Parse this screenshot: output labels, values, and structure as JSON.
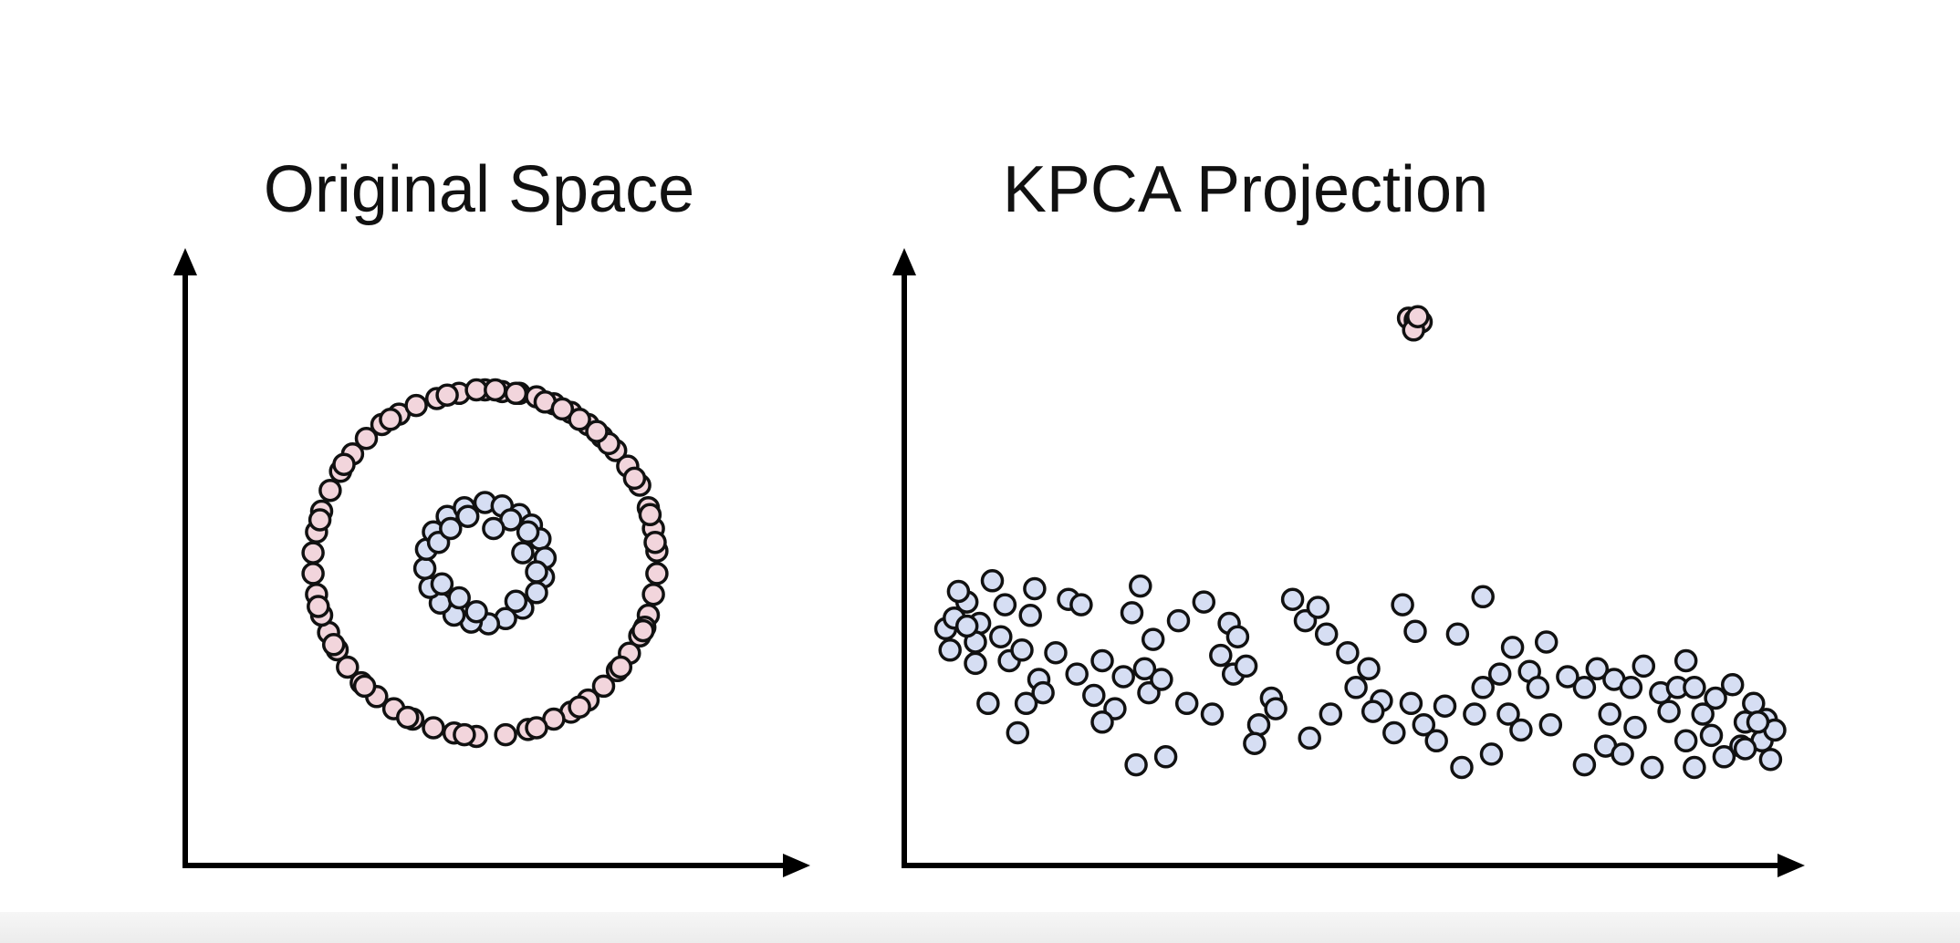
{
  "colors": {
    "outer_ring": "#f2d5dc",
    "inner_ring": "#d6def3",
    "axis": "#000000",
    "marker_edge": "#111111"
  },
  "chart_data": [
    {
      "type": "scatter",
      "title": "Original Space",
      "xlabel": "",
      "ylabel": "",
      "axes_ticks": false,
      "grid": false,
      "xlim": [
        -1.25,
        1.25
      ],
      "ylim": [
        -1.25,
        1.25
      ],
      "series": [
        {
          "color": "#f2d5dc",
          "points": [
            [
              0.0,
              1.0
            ],
            [
              0.1,
              0.99
            ],
            [
              0.2,
              0.98
            ],
            [
              0.3,
              0.96
            ],
            [
              0.4,
              0.92
            ],
            [
              0.5,
              0.87
            ],
            [
              0.6,
              0.8
            ],
            [
              0.68,
              0.73
            ],
            [
              0.76,
              0.65
            ],
            [
              0.83,
              0.56
            ],
            [
              0.9,
              0.45
            ],
            [
              0.95,
              0.32
            ],
            [
              0.98,
              0.2
            ],
            [
              1.0,
              0.07
            ],
            [
              1.0,
              -0.06
            ],
            [
              0.98,
              -0.18
            ],
            [
              0.95,
              -0.3
            ],
            [
              0.9,
              -0.42
            ],
            [
              0.84,
              -0.52
            ],
            [
              0.77,
              -0.62
            ],
            [
              0.69,
              -0.71
            ],
            [
              0.6,
              -0.79
            ],
            [
              0.5,
              -0.86
            ],
            [
              0.4,
              -0.9
            ],
            [
              0.25,
              -0.96
            ],
            [
              0.12,
              -0.99
            ],
            [
              -0.05,
              -1.0
            ],
            [
              -0.18,
              -0.98
            ],
            [
              -0.3,
              -0.95
            ],
            [
              -0.42,
              -0.9
            ],
            [
              -0.53,
              -0.84
            ],
            [
              -0.63,
              -0.77
            ],
            [
              -0.72,
              -0.69
            ],
            [
              -0.8,
              -0.6
            ],
            [
              -0.86,
              -0.5
            ],
            [
              -0.91,
              -0.4
            ],
            [
              -0.95,
              -0.3
            ],
            [
              -0.98,
              -0.18
            ],
            [
              -1.0,
              -0.06
            ],
            [
              -1.0,
              0.06
            ],
            [
              -0.98,
              0.18
            ],
            [
              -0.95,
              0.3
            ],
            [
              -0.9,
              0.42
            ],
            [
              -0.84,
              0.53
            ],
            [
              -0.77,
              0.63
            ],
            [
              -0.69,
              0.72
            ],
            [
              -0.6,
              0.8
            ],
            [
              -0.5,
              0.86
            ],
            [
              -0.4,
              0.91
            ],
            [
              -0.28,
              0.95
            ],
            [
              -0.15,
              0.98
            ],
            [
              -0.05,
              1.0
            ],
            [
              0.06,
              1.0
            ],
            [
              0.18,
              0.98
            ],
            [
              0.35,
              0.93
            ],
            [
              0.55,
              0.83
            ],
            [
              0.72,
              0.69
            ],
            [
              0.87,
              0.49
            ],
            [
              0.96,
              0.28
            ],
            [
              0.99,
              0.12
            ],
            [
              0.93,
              -0.37
            ],
            [
              0.79,
              -0.6
            ],
            [
              0.55,
              -0.83
            ],
            [
              0.3,
              -0.95
            ],
            [
              -0.12,
              -0.99
            ],
            [
              -0.45,
              -0.89
            ],
            [
              -0.7,
              -0.71
            ],
            [
              -0.88,
              -0.47
            ],
            [
              -0.97,
              -0.25
            ],
            [
              -0.96,
              0.25
            ],
            [
              -0.82,
              0.57
            ],
            [
              -0.55,
              0.83
            ],
            [
              -0.22,
              0.97
            ],
            [
              0.45,
              0.89
            ],
            [
              0.65,
              0.76
            ],
            [
              0.92,
              -0.39
            ]
          ]
        },
        {
          "color": "#d6def3",
          "points": [
            [
              0.0,
              0.35
            ],
            [
              0.1,
              0.33
            ],
            [
              0.2,
              0.28
            ],
            [
              0.27,
              0.22
            ],
            [
              0.32,
              0.14
            ],
            [
              0.35,
              0.03
            ],
            [
              0.34,
              -0.08
            ],
            [
              0.3,
              -0.17
            ],
            [
              0.22,
              -0.26
            ],
            [
              0.12,
              -0.32
            ],
            [
              0.02,
              -0.35
            ],
            [
              -0.08,
              -0.34
            ],
            [
              -0.18,
              -0.3
            ],
            [
              -0.26,
              -0.23
            ],
            [
              -0.32,
              -0.14
            ],
            [
              -0.35,
              -0.03
            ],
            [
              -0.34,
              0.08
            ],
            [
              -0.3,
              0.18
            ],
            [
              -0.22,
              0.27
            ],
            [
              -0.12,
              0.32
            ],
            [
              0.25,
              0.18
            ],
            [
              0.3,
              -0.05
            ],
            [
              0.18,
              -0.22
            ],
            [
              -0.05,
              -0.28
            ],
            [
              -0.25,
              -0.12
            ],
            [
              -0.27,
              0.12
            ],
            [
              -0.1,
              0.27
            ],
            [
              0.15,
              0.25
            ],
            [
              0.05,
              0.2
            ],
            [
              -0.2,
              0.2
            ],
            [
              0.22,
              0.06
            ],
            [
              -0.15,
              -0.2
            ]
          ]
        }
      ]
    },
    {
      "type": "scatter",
      "title": "KPCA Projection",
      "xlabel": "",
      "ylabel": "",
      "axes_ticks": false,
      "grid": false,
      "xlim": [
        0,
        10
      ],
      "ylim": [
        0,
        10
      ],
      "series": [
        {
          "color": "#f2d5dc",
          "points": [
            [
              5.67,
              9.42
            ],
            [
              5.75,
              9.39
            ],
            [
              5.82,
              9.35
            ],
            [
              5.73,
              9.2
            ],
            [
              5.78,
              9.45
            ]
          ]
        },
        {
          "color": "#d6def3",
          "points": [
            [
              0.2,
              3.6
            ],
            [
              0.3,
              3.8
            ],
            [
              0.45,
              4.1
            ],
            [
              0.35,
              4.3
            ],
            [
              0.6,
              3.7
            ],
            [
              0.75,
              4.5
            ],
            [
              0.9,
              4.05
            ],
            [
              0.85,
              3.45
            ],
            [
              0.95,
              3.0
            ],
            [
              0.7,
              2.2
            ],
            [
              1.2,
              3.85
            ],
            [
              1.1,
              3.2
            ],
            [
              1.3,
              2.65
            ],
            [
              1.15,
              2.2
            ],
            [
              0.55,
              2.95
            ],
            [
              0.25,
              3.2
            ],
            [
              1.5,
              3.15
            ],
            [
              1.35,
              2.4
            ],
            [
              1.65,
              4.15
            ],
            [
              1.8,
              4.05
            ],
            [
              2.05,
              3.0
            ],
            [
              2.2,
              2.1
            ],
            [
              2.3,
              2.7
            ],
            [
              1.95,
              2.35
            ],
            [
              2.4,
              3.9
            ],
            [
              2.5,
              4.4
            ],
            [
              2.55,
              2.85
            ],
            [
              2.6,
              2.4
            ],
            [
              2.65,
              3.4
            ],
            [
              2.8,
              1.2
            ],
            [
              2.95,
              3.75
            ],
            [
              3.25,
              4.1
            ],
            [
              3.35,
              2.0
            ],
            [
              3.45,
              3.1
            ],
            [
              3.55,
              3.7
            ],
            [
              3.6,
              2.75
            ],
            [
              3.75,
              2.9
            ],
            [
              3.9,
              1.8
            ],
            [
              3.65,
              3.45
            ],
            [
              4.05,
              2.3
            ],
            [
              4.3,
              4.15
            ],
            [
              4.45,
              3.75
            ],
            [
              4.6,
              4.0
            ],
            [
              4.7,
              3.5
            ],
            [
              4.75,
              2.0
            ],
            [
              4.95,
              3.15
            ],
            [
              5.05,
              2.5
            ],
            [
              5.2,
              2.85
            ],
            [
              5.35,
              2.25
            ],
            [
              5.5,
              1.65
            ],
            [
              5.6,
              4.05
            ],
            [
              5.75,
              3.55
            ],
            [
              5.85,
              1.8
            ],
            [
              6.0,
              1.5
            ],
            [
              6.1,
              2.15
            ],
            [
              6.25,
              3.5
            ],
            [
              6.3,
              1.0
            ],
            [
              6.45,
              2.0
            ],
            [
              6.55,
              2.5
            ],
            [
              6.65,
              1.25
            ],
            [
              6.75,
              2.75
            ],
            [
              6.9,
              3.25
            ],
            [
              7.0,
              1.7
            ],
            [
              7.1,
              2.8
            ],
            [
              7.2,
              2.5
            ],
            [
              7.3,
              3.35
            ],
            [
              7.35,
              1.8
            ],
            [
              7.55,
              2.7
            ],
            [
              7.75,
              2.5
            ],
            [
              7.9,
              2.85
            ],
            [
              8.0,
              1.4
            ],
            [
              8.1,
              2.65
            ],
            [
              8.2,
              1.25
            ],
            [
              8.3,
              2.5
            ],
            [
              8.45,
              2.9
            ],
            [
              8.55,
              1.0
            ],
            [
              8.65,
              2.4
            ],
            [
              8.75,
              2.05
            ],
            [
              8.85,
              2.5
            ],
            [
              8.95,
              1.5
            ],
            [
              9.05,
              2.5
            ],
            [
              9.15,
              2.0
            ],
            [
              9.25,
              1.6
            ],
            [
              9.3,
              2.3
            ],
            [
              9.4,
              1.2
            ],
            [
              9.5,
              2.55
            ],
            [
              9.6,
              1.4
            ],
            [
              9.65,
              1.85
            ],
            [
              9.75,
              2.2
            ],
            [
              9.85,
              1.5
            ],
            [
              9.9,
              1.9
            ],
            [
              9.95,
              1.15
            ],
            [
              10.0,
              1.7
            ],
            [
              9.8,
              1.85
            ],
            [
              9.05,
              1.0
            ],
            [
              8.35,
              1.75
            ],
            [
              6.85,
              2.0
            ],
            [
              5.7,
              2.2
            ],
            [
              4.5,
              1.55
            ],
            [
              3.05,
              2.2
            ],
            [
              1.75,
              2.75
            ],
            [
              0.55,
              3.35
            ],
            [
              1.05,
              1.65
            ],
            [
              2.05,
              1.85
            ],
            [
              2.45,
              1.05
            ],
            [
              3.85,
              1.45
            ],
            [
              5.25,
              2.05
            ],
            [
              7.75,
              1.05
            ],
            [
              8.95,
              3.0
            ],
            [
              9.65,
              1.35
            ],
            [
              0.45,
              3.65
            ],
            [
              1.25,
              4.35
            ],
            [
              2.75,
              2.65
            ],
            [
              4.1,
              2.1
            ],
            [
              6.55,
              4.2
            ],
            [
              8.05,
              2.0
            ]
          ]
        }
      ]
    }
  ]
}
